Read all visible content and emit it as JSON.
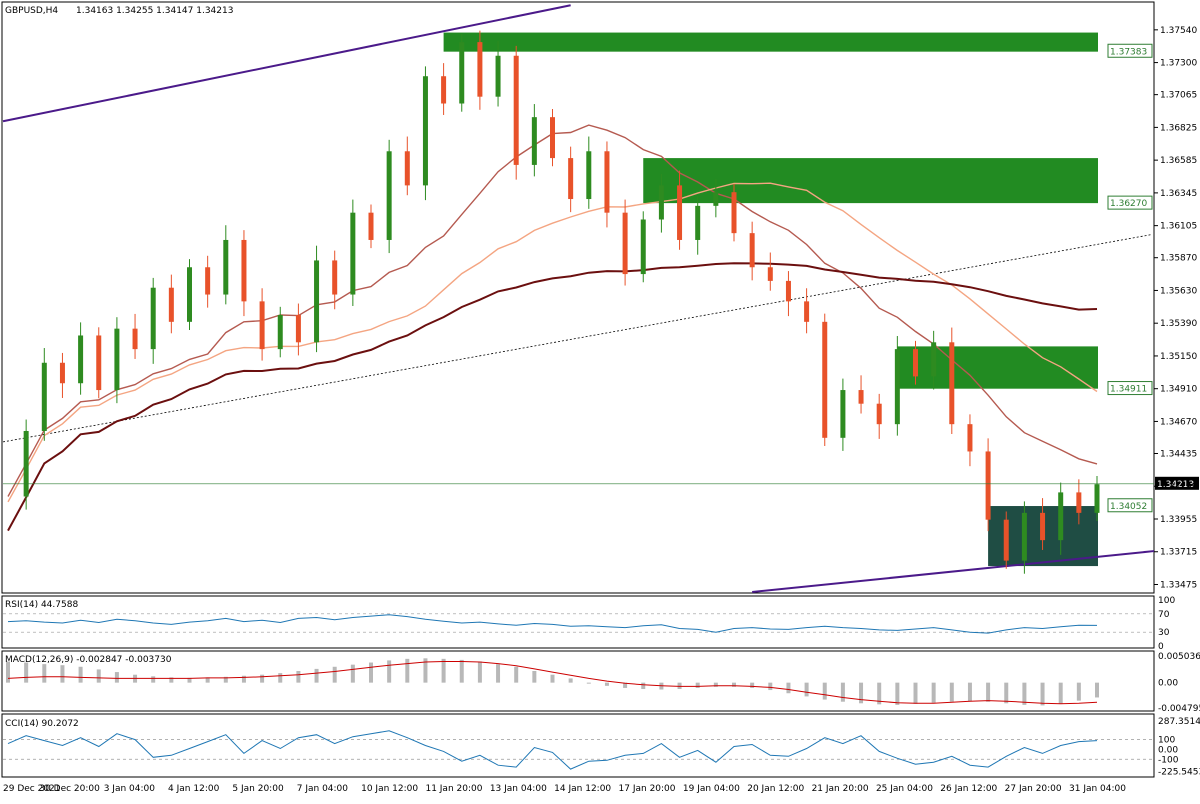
{
  "header": {
    "symbol_timeframe": "GBPUSD,H4",
    "ohlc": "1.34163 1.34255 1.34147 1.34213"
  },
  "colors": {
    "bull": "#2e8b20",
    "bear": "#e8522a",
    "zone": "#228b22",
    "dark_zone": "#1f4d44",
    "ma_fast": "#b55a50",
    "ma_mid": "#f4a582",
    "ma_slow": "#6b0f0f",
    "trendline": "#4b1a8a",
    "indicator": "#1f77b4",
    "signal": "#cc0000",
    "histogram": "#b8b8b8",
    "grid_border": "#000000"
  },
  "chart_data": [
    {
      "type": "candlestick",
      "symbol": "GBPUSD",
      "timeframe": "H4",
      "y_range": [
        1.3342,
        1.377
      ],
      "y_ticks": [
        "1.37540",
        "1.37300",
        "1.37065",
        "1.36825",
        "1.36585",
        "1.36345",
        "1.36105",
        "1.35870",
        "1.35630",
        "1.35390",
        "1.35150",
        "1.34910",
        "1.34670",
        "1.34435",
        "1.34195",
        "1.33955",
        "1.33715",
        "1.33475"
      ],
      "x_labels": [
        "29 Dec 2021",
        "30 Dec 20:00",
        "3 Jan 04:00",
        "4 Jan 12:00",
        "5 Jan 20:00",
        "7 Jan 04:00",
        "10 Jan 12:00",
        "11 Jan 20:00",
        "13 Jan 04:00",
        "14 Jan 12:00",
        "17 Jan 20:00",
        "19 Jan 04:00",
        "20 Jan 12:00",
        "21 Jan 20:00",
        "25 Jan 04:00",
        "26 Jan 12:00",
        "27 Jan 20:00",
        "31 Jan 04:00"
      ],
      "current_price": "1.34213",
      "price_labels": [
        "1.37383",
        "1.36270",
        "1.34911",
        "1.34052"
      ],
      "path": [
        1.3412,
        1.346,
        1.351,
        1.3495,
        1.353,
        1.349,
        1.3535,
        1.352,
        1.3565,
        1.354,
        1.358,
        1.356,
        1.36,
        1.3555,
        1.352,
        1.3545,
        1.3525,
        1.3585,
        1.356,
        1.362,
        1.36,
        1.3665,
        1.364,
        1.372,
        1.37,
        1.3745,
        1.3705,
        1.3735,
        1.3655,
        1.369,
        1.366,
        1.363,
        1.3665,
        1.362,
        1.3575,
        1.3615,
        1.364,
        1.36,
        1.3625,
        1.3635,
        1.3605,
        1.358,
        1.357,
        1.3555,
        1.354,
        1.3455,
        1.349,
        1.348,
        1.3465,
        1.352,
        1.35,
        1.3525,
        1.3465,
        1.3445,
        1.3395,
        1.3365,
        1.34,
        1.338,
        1.3415,
        1.34,
        1.3421
      ],
      "zones": [
        {
          "from": 1.3752,
          "to": 1.3738,
          "label": "1.37383"
        },
        {
          "from": 1.366,
          "to": 1.3627,
          "label": "1.36270"
        },
        {
          "from": 1.3522,
          "to": 1.3491,
          "label": "1.34911"
        },
        {
          "from": 1.3405,
          "to": 1.3361,
          "label": "1.34052"
        }
      ]
    },
    {
      "type": "line",
      "name": "RSI(14) 44.7588",
      "y_range": [
        0,
        100
      ],
      "levels": [
        70,
        30
      ],
      "y_ticks": [
        "100",
        "70",
        "30",
        "0"
      ],
      "values": [
        53,
        55,
        52,
        50,
        56,
        51,
        58,
        55,
        50,
        47,
        52,
        55,
        60,
        53,
        56,
        51,
        60,
        62,
        57,
        62,
        65,
        68,
        64,
        58,
        54,
        50,
        52,
        48,
        45,
        49,
        47,
        43,
        44,
        42,
        40,
        44,
        46,
        38,
        36,
        30,
        38,
        40,
        37,
        36,
        40,
        43,
        40,
        38,
        35,
        34,
        37,
        40,
        35,
        30,
        28,
        35,
        40,
        38,
        42,
        45,
        44.76
      ]
    },
    {
      "type": "bar+line",
      "name": "MACD(12,26,9) -0.002847 -0.003730",
      "y_range": [
        -0.00479,
        0.005036
      ],
      "y_ticks": [
        "0.005036",
        "0.00",
        "-0.004795"
      ],
      "histogram": [
        0.004,
        0.0038,
        0.0035,
        0.0033,
        0.003,
        0.0025,
        0.002,
        0.0015,
        0.0012,
        0.001,
        0.0009,
        0.001,
        0.0011,
        0.0013,
        0.0015,
        0.0018,
        0.0022,
        0.0026,
        0.003,
        0.0034,
        0.0038,
        0.0042,
        0.0045,
        0.0046,
        0.0045,
        0.0043,
        0.004,
        0.0035,
        0.003,
        0.0022,
        0.0015,
        0.0008,
        0.0,
        -0.0006,
        -0.001,
        -0.0012,
        -0.0013,
        -0.0012,
        -0.001,
        -0.0008,
        -0.0008,
        -0.001,
        -0.0014,
        -0.002,
        -0.0026,
        -0.0032,
        -0.0036,
        -0.0039,
        -0.0041,
        -0.0042,
        -0.004,
        -0.0038,
        -0.0036,
        -0.0035,
        -0.0036,
        -0.0039,
        -0.0042,
        -0.0043,
        -0.004,
        -0.0034,
        -0.0028
      ],
      "signal": [
        0.0008,
        0.001,
        0.0011,
        0.0011,
        0.001,
        0.0009,
        0.0008,
        0.0008,
        0.0008,
        0.0008,
        0.0008,
        0.0009,
        0.0009,
        0.001,
        0.0011,
        0.0013,
        0.0015,
        0.0018,
        0.0021,
        0.0025,
        0.0029,
        0.0033,
        0.0036,
        0.0039,
        0.004,
        0.004,
        0.0039,
        0.0036,
        0.0032,
        0.0026,
        0.002,
        0.0014,
        0.0008,
        0.0003,
        -0.0001,
        -0.0004,
        -0.0006,
        -0.0007,
        -0.0007,
        -0.0006,
        -0.0006,
        -0.0007,
        -0.0009,
        -0.0013,
        -0.0018,
        -0.0023,
        -0.0028,
        -0.0032,
        -0.0035,
        -0.0038,
        -0.0039,
        -0.0039,
        -0.0037,
        -0.0035,
        -0.0034,
        -0.0035,
        -0.0037,
        -0.0039,
        -0.004,
        -0.0039,
        -0.0037
      ]
    },
    {
      "type": "line",
      "name": "CCI(14) 90.2072",
      "y_range": [
        -260,
        320
      ],
      "levels": [
        100,
        -100
      ],
      "y_ticks": [
        "287.3514",
        "100",
        "0.00",
        "-100",
        "-225.5453"
      ],
      "values": [
        60,
        140,
        90,
        40,
        120,
        30,
        160,
        100,
        -80,
        -60,
        10,
        80,
        150,
        -40,
        90,
        10,
        120,
        150,
        60,
        130,
        160,
        190,
        120,
        40,
        -20,
        -120,
        -60,
        -160,
        -180,
        20,
        -30,
        -200,
        -120,
        -110,
        -60,
        -40,
        60,
        -80,
        -10,
        -130,
        30,
        50,
        -60,
        -70,
        10,
        120,
        60,
        140,
        -20,
        -90,
        -150,
        -130,
        -70,
        -160,
        -180,
        -70,
        20,
        -40,
        40,
        80,
        90.21
      ]
    }
  ]
}
